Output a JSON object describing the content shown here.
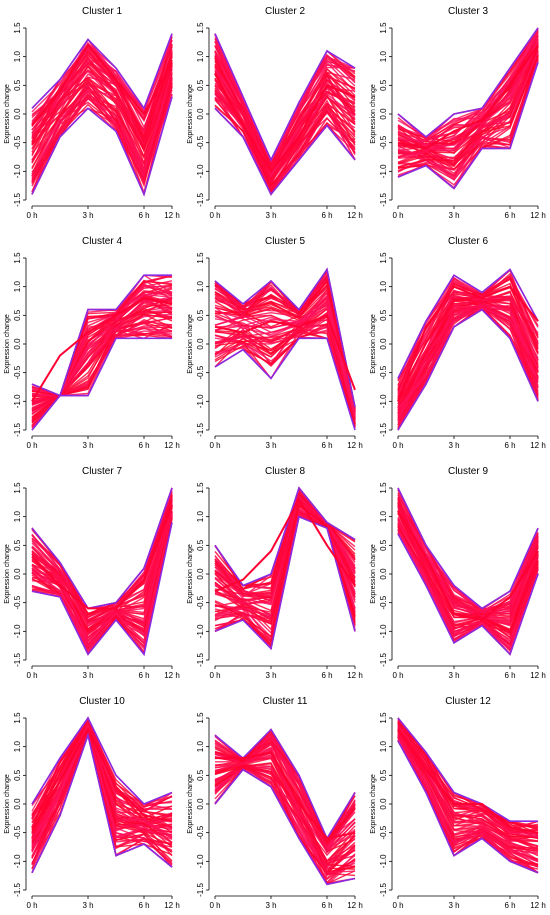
{
  "chart_data": {
    "type": "line",
    "ylabel": "Expression change",
    "x_ticks": [
      "0 h",
      "3 h",
      "6 h",
      "12 h"
    ],
    "y_ticks": [
      "-1.5",
      "-1.0",
      "-0.5",
      "0.0",
      "0.5",
      "1.0",
      "1.5"
    ],
    "ylim": [
      -1.5,
      1.5
    ],
    "x_points": [
      0,
      1,
      2,
      3,
      4,
      5
    ],
    "colors": {
      "low": "#ff0033",
      "high": "#ff0066",
      "edge": "#8a2be2"
    },
    "panels": [
      {
        "title": "Cluster 1",
        "mid": [
          -0.2,
          0.4,
          1.2,
          0.6,
          0.0,
          0.9
        ],
        "upper": [
          0.1,
          0.6,
          1.3,
          0.8,
          0.1,
          1.4
        ],
        "lower": [
          -1.4,
          -0.4,
          0.1,
          -0.3,
          -1.4,
          0.3
        ]
      },
      {
        "title": "Cluster 2",
        "mid": [
          0.7,
          -0.2,
          -1.0,
          -0.4,
          0.5,
          0.3
        ],
        "upper": [
          1.4,
          0.3,
          -0.8,
          0.2,
          1.1,
          0.8
        ],
        "lower": [
          0.1,
          -0.4,
          -1.4,
          -0.8,
          -0.2,
          -0.8
        ]
      },
      {
        "title": "Cluster 3",
        "mid": [
          -0.5,
          -0.6,
          -0.3,
          -0.1,
          0.5,
          1.2
        ],
        "upper": [
          0.0,
          -0.4,
          0.0,
          0.1,
          0.8,
          1.5
        ],
        "lower": [
          -1.1,
          -0.9,
          -1.3,
          -0.6,
          -0.6,
          0.9
        ]
      },
      {
        "title": "Cluster 4",
        "mid": [
          -1.0,
          -0.2,
          0.2,
          0.5,
          0.8,
          0.7
        ],
        "upper": [
          -0.7,
          -0.9,
          0.6,
          0.6,
          1.2,
          1.2
        ],
        "lower": [
          -1.5,
          -0.9,
          -0.9,
          0.1,
          0.1,
          0.1
        ]
      },
      {
        "title": "Cluster 5",
        "mid": [
          0.3,
          0.2,
          0.4,
          0.3,
          0.5,
          -0.8
        ],
        "upper": [
          1.1,
          0.7,
          1.1,
          0.6,
          1.3,
          -1.1
        ],
        "lower": [
          -0.4,
          -0.1,
          -0.6,
          0.1,
          0.1,
          -1.5
        ]
      },
      {
        "title": "Cluster 6",
        "mid": [
          -1.0,
          0.3,
          1.0,
          0.8,
          1.0,
          0.4
        ],
        "upper": [
          -0.6,
          0.4,
          1.2,
          0.9,
          1.3,
          0.4
        ],
        "lower": [
          -1.5,
          -0.7,
          0.3,
          0.6,
          0.1,
          -1.0
        ]
      },
      {
        "title": "Cluster 7",
        "mid": [
          0.3,
          -0.2,
          -0.6,
          -0.6,
          -0.1,
          1.2
        ],
        "upper": [
          0.8,
          0.2,
          -0.6,
          -0.5,
          0.1,
          1.5
        ],
        "lower": [
          -0.3,
          -0.4,
          -1.4,
          -0.8,
          -1.4,
          0.9
        ]
      },
      {
        "title": "Cluster 8",
        "mid": [
          -0.3,
          -0.1,
          0.4,
          1.3,
          0.5,
          -0.2
        ],
        "upper": [
          0.5,
          -0.2,
          0.0,
          1.5,
          0.9,
          0.6
        ],
        "lower": [
          -1.0,
          -0.8,
          -1.3,
          1.0,
          0.8,
          -1.0
        ]
      },
      {
        "title": "Cluster 9",
        "mid": [
          1.1,
          0.3,
          -0.7,
          -0.8,
          -0.4,
          0.4
        ],
        "upper": [
          1.5,
          0.5,
          -0.2,
          -0.6,
          -0.3,
          0.8
        ],
        "lower": [
          0.7,
          -0.2,
          -1.2,
          -0.9,
          -1.4,
          0.0
        ]
      },
      {
        "title": "Cluster 10",
        "mid": [
          -0.5,
          0.4,
          1.3,
          0.3,
          -0.2,
          -0.3
        ],
        "upper": [
          0.0,
          0.8,
          1.5,
          0.5,
          0.0,
          0.2
        ],
        "lower": [
          -1.2,
          -0.2,
          1.2,
          -0.9,
          -0.7,
          -1.1
        ]
      },
      {
        "title": "Cluster 11",
        "mid": [
          0.8,
          0.8,
          0.9,
          0.0,
          -0.6,
          -0.5
        ],
        "upper": [
          1.2,
          0.8,
          1.3,
          0.5,
          -0.6,
          0.2
        ],
        "lower": [
          0.0,
          0.6,
          0.3,
          -0.6,
          -1.4,
          -1.3
        ]
      },
      {
        "title": "Cluster 12",
        "mid": [
          1.3,
          0.6,
          0.0,
          0.0,
          -0.4,
          -0.5
        ],
        "upper": [
          1.5,
          0.9,
          0.2,
          0.0,
          -0.3,
          -0.3
        ],
        "lower": [
          1.1,
          0.2,
          -0.9,
          -0.6,
          -1.0,
          -1.2
        ]
      }
    ]
  }
}
